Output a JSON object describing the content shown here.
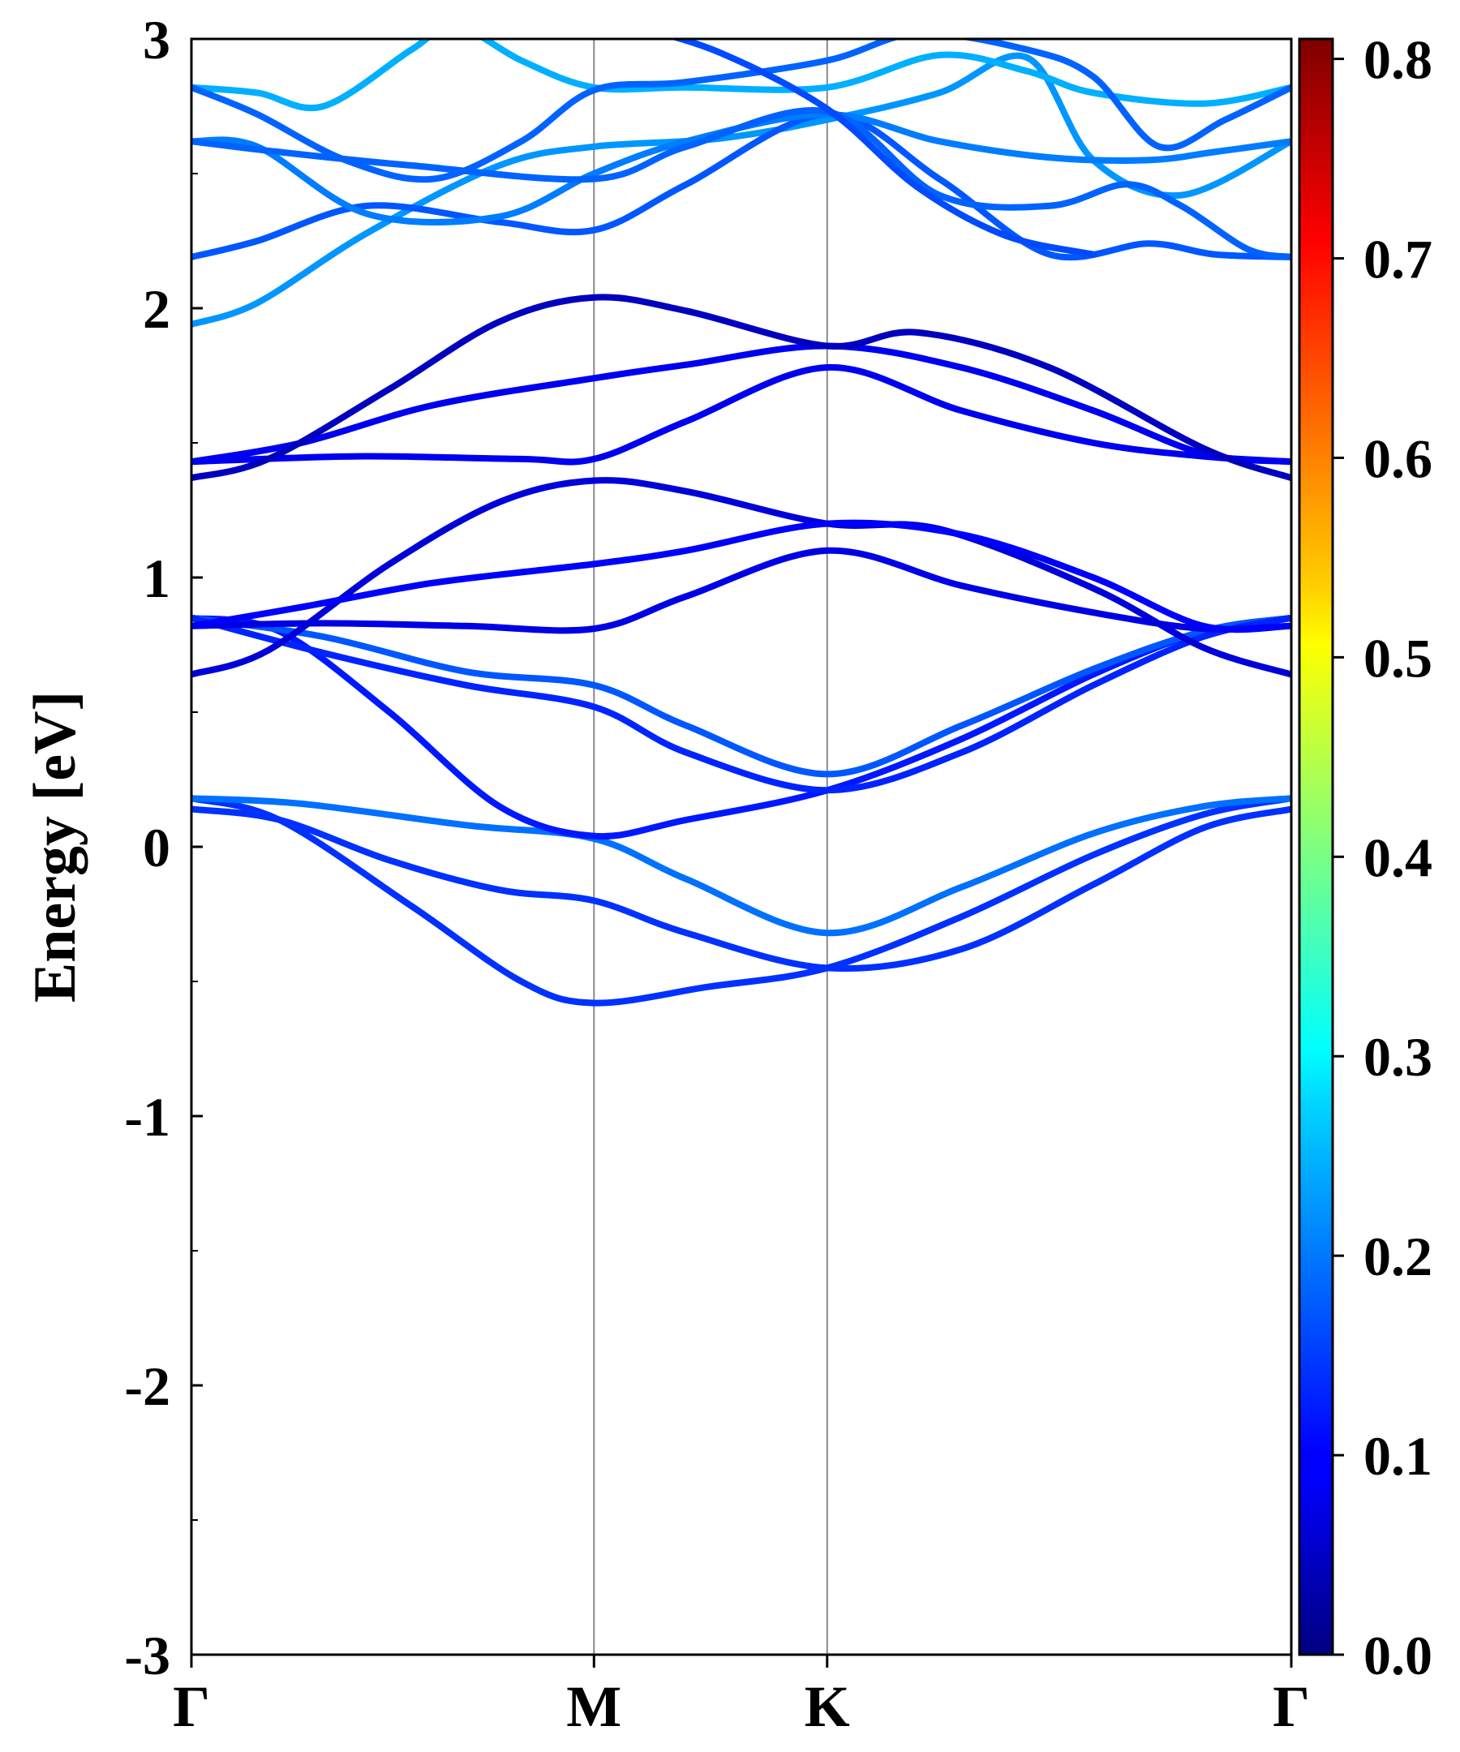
{
  "chart_data": {
    "type": "line",
    "ylabel": "Energy [eV]",
    "ylim": [
      -3,
      3
    ],
    "yticks": [
      "-3",
      "-2",
      "-1",
      "0",
      "1",
      "2",
      "3"
    ],
    "kpoint_labels": [
      "Γ",
      "M",
      "K",
      "Γ"
    ],
    "kpoint_positions": [
      0.0,
      0.366,
      0.578,
      1.0
    ],
    "grid": false,
    "colorbar": {
      "range": [
        0.0,
        0.81
      ],
      "ticks": [
        "0.0",
        "0.1",
        "0.2",
        "0.3",
        "0.4",
        "0.5",
        "0.6",
        "0.7",
        "0.8"
      ],
      "colormap": "jet"
    },
    "series": [
      {
        "color_value": 0.14,
        "points": [
          [
            0,
            0.14
          ],
          [
            0.08,
            0.1
          ],
          [
            0.18,
            -0.05
          ],
          [
            0.28,
            -0.16
          ],
          [
            0.366,
            -0.2
          ],
          [
            0.45,
            -0.32
          ],
          [
            0.578,
            -0.45
          ],
          [
            0.7,
            -0.38
          ],
          [
            0.82,
            -0.14
          ],
          [
            0.92,
            0.07
          ],
          [
            1.0,
            0.14
          ]
        ]
      },
      {
        "color_value": 0.14,
        "points": [
          [
            0,
            0.18
          ],
          [
            0.08,
            0.1
          ],
          [
            0.2,
            -0.22
          ],
          [
            0.3,
            -0.5
          ],
          [
            0.366,
            -0.58
          ],
          [
            0.47,
            -0.52
          ],
          [
            0.578,
            -0.45
          ],
          [
            0.7,
            -0.26
          ],
          [
            0.82,
            -0.03
          ],
          [
            0.92,
            0.12
          ],
          [
            1.0,
            0.18
          ]
        ]
      },
      {
        "color_value": 0.19,
        "points": [
          [
            0,
            0.18
          ],
          [
            0.1,
            0.16
          ],
          [
            0.25,
            0.08
          ],
          [
            0.366,
            0.03
          ],
          [
            0.45,
            -0.12
          ],
          [
            0.578,
            -0.32
          ],
          [
            0.7,
            -0.15
          ],
          [
            0.82,
            0.05
          ],
          [
            0.92,
            0.15
          ],
          [
            1.0,
            0.18
          ]
        ]
      },
      {
        "color_value": 0.12,
        "points": [
          [
            0,
            0.85
          ],
          [
            0.08,
            0.8
          ],
          [
            0.18,
            0.5
          ],
          [
            0.28,
            0.15
          ],
          [
            0.366,
            0.04
          ],
          [
            0.45,
            0.1
          ],
          [
            0.578,
            0.21
          ],
          [
            0.7,
            0.4
          ],
          [
            0.82,
            0.64
          ],
          [
            0.92,
            0.8
          ],
          [
            1.0,
            0.85
          ]
        ]
      },
      {
        "color_value": 0.17,
        "points": [
          [
            0,
            0.85
          ],
          [
            0.12,
            0.78
          ],
          [
            0.25,
            0.65
          ],
          [
            0.366,
            0.6
          ],
          [
            0.45,
            0.45
          ],
          [
            0.578,
            0.27
          ],
          [
            0.7,
            0.45
          ],
          [
            0.82,
            0.66
          ],
          [
            0.92,
            0.8
          ],
          [
            1.0,
            0.85
          ]
        ]
      },
      {
        "color_value": 0.13,
        "points": [
          [
            0,
            0.85
          ],
          [
            0.12,
            0.72
          ],
          [
            0.25,
            0.6
          ],
          [
            0.366,
            0.52
          ],
          [
            0.45,
            0.35
          ],
          [
            0.578,
            0.21
          ],
          [
            0.7,
            0.35
          ],
          [
            0.82,
            0.6
          ],
          [
            0.92,
            0.78
          ],
          [
            1.0,
            0.85
          ]
        ]
      },
      {
        "color_value": 0.08,
        "points": [
          [
            0,
            0.82
          ],
          [
            0.12,
            0.83
          ],
          [
            0.25,
            0.82
          ],
          [
            0.366,
            0.81
          ],
          [
            0.45,
            0.93
          ],
          [
            0.578,
            1.1
          ],
          [
            0.7,
            0.97
          ],
          [
            0.82,
            0.87
          ],
          [
            0.92,
            0.81
          ],
          [
            1.0,
            0.82
          ]
        ]
      },
      {
        "color_value": 0.07,
        "points": [
          [
            0,
            0.64
          ],
          [
            0.07,
            0.73
          ],
          [
            0.18,
            1.05
          ],
          [
            0.28,
            1.28
          ],
          [
            0.366,
            1.36
          ],
          [
            0.45,
            1.32
          ],
          [
            0.578,
            1.2
          ],
          [
            0.68,
            1.18
          ],
          [
            0.82,
            0.96
          ],
          [
            0.92,
            0.74
          ],
          [
            1.0,
            0.64
          ]
        ]
      },
      {
        "color_value": 0.1,
        "points": [
          [
            0,
            0.82
          ],
          [
            0.1,
            0.89
          ],
          [
            0.22,
            0.98
          ],
          [
            0.366,
            1.05
          ],
          [
            0.45,
            1.1
          ],
          [
            0.578,
            1.2
          ],
          [
            0.7,
            1.16
          ],
          [
            0.82,
            1.0
          ],
          [
            0.92,
            0.82
          ],
          [
            1.0,
            0.82
          ]
        ]
      },
      {
        "color_value": 0.09,
        "points": [
          [
            0,
            1.43
          ],
          [
            0.15,
            1.45
          ],
          [
            0.3,
            1.44
          ],
          [
            0.366,
            1.44
          ],
          [
            0.45,
            1.58
          ],
          [
            0.578,
            1.78
          ],
          [
            0.7,
            1.62
          ],
          [
            0.82,
            1.5
          ],
          [
            0.92,
            1.45
          ],
          [
            1.0,
            1.43
          ]
        ]
      },
      {
        "color_value": 0.09,
        "points": [
          [
            0,
            1.43
          ],
          [
            0.1,
            1.5
          ],
          [
            0.22,
            1.64
          ],
          [
            0.366,
            1.74
          ],
          [
            0.45,
            1.79
          ],
          [
            0.578,
            1.86
          ],
          [
            0.7,
            1.78
          ],
          [
            0.82,
            1.62
          ],
          [
            0.92,
            1.46
          ],
          [
            1.0,
            1.43
          ]
        ]
      },
      {
        "color_value": 0.05,
        "points": [
          [
            0,
            1.37
          ],
          [
            0.07,
            1.44
          ],
          [
            0.18,
            1.7
          ],
          [
            0.28,
            1.95
          ],
          [
            0.366,
            2.04
          ],
          [
            0.45,
            1.99
          ],
          [
            0.578,
            1.86
          ],
          [
            0.66,
            1.91
          ],
          [
            0.78,
            1.78
          ],
          [
            0.92,
            1.48
          ],
          [
            1.0,
            1.37
          ]
        ]
      },
      {
        "color_value": 0.22,
        "points": [
          [
            0,
            1.94
          ],
          [
            0.06,
            2.02
          ],
          [
            0.16,
            2.28
          ],
          [
            0.28,
            2.53
          ],
          [
            0.366,
            2.6
          ],
          [
            0.48,
            2.63
          ],
          [
            0.578,
            2.7
          ],
          [
            0.68,
            2.8
          ],
          [
            0.76,
            2.93
          ],
          [
            0.82,
            2.55
          ],
          [
            0.9,
            2.42
          ],
          [
            1.0,
            2.62
          ]
        ]
      },
      {
        "color_value": 0.17,
        "points": [
          [
            0,
            2.19
          ],
          [
            0.06,
            2.25
          ],
          [
            0.16,
            2.38
          ],
          [
            0.28,
            2.32
          ],
          [
            0.366,
            2.29
          ],
          [
            0.45,
            2.46
          ],
          [
            0.578,
            2.72
          ],
          [
            0.68,
            2.48
          ],
          [
            0.78,
            2.2
          ],
          [
            0.87,
            2.24
          ],
          [
            0.93,
            2.2
          ],
          [
            1.0,
            2.19
          ]
        ]
      },
      {
        "color_value": 0.2,
        "points": [
          [
            0,
            2.62
          ],
          [
            0.06,
            2.6
          ],
          [
            0.16,
            2.35
          ],
          [
            0.28,
            2.34
          ],
          [
            0.366,
            2.5
          ],
          [
            0.45,
            2.62
          ],
          [
            0.578,
            2.72
          ],
          [
            0.68,
            2.62
          ],
          [
            0.78,
            2.56
          ],
          [
            0.87,
            2.55
          ],
          [
            0.93,
            2.58
          ],
          [
            1.0,
            2.62
          ]
        ]
      },
      {
        "color_value": 0.18,
        "points": [
          [
            0,
            2.62
          ],
          [
            0.08,
            2.58
          ],
          [
            0.2,
            2.53
          ],
          [
            0.366,
            2.48
          ],
          [
            0.45,
            2.6
          ],
          [
            0.578,
            2.73
          ],
          [
            0.68,
            2.42
          ],
          [
            0.78,
            2.38
          ],
          [
            0.85,
            2.46
          ],
          [
            0.9,
            2.38
          ],
          [
            0.96,
            2.22
          ],
          [
            1.0,
            2.19
          ]
        ]
      },
      {
        "color_value": 0.24,
        "points": [
          [
            0,
            2.82
          ],
          [
            0.06,
            2.8
          ],
          [
            0.12,
            2.75
          ],
          [
            0.2,
            2.96
          ],
          [
            0.24,
            3.05
          ],
          [
            0.3,
            2.92
          ],
          [
            0.366,
            2.82
          ],
          [
            0.45,
            2.82
          ],
          [
            0.578,
            2.82
          ],
          [
            0.68,
            2.94
          ],
          [
            0.76,
            2.88
          ],
          [
            0.82,
            2.8
          ],
          [
            0.92,
            2.76
          ],
          [
            1.0,
            2.82
          ]
        ]
      },
      {
        "color_value": 0.18,
        "points": [
          [
            0,
            2.82
          ],
          [
            0.06,
            2.72
          ],
          [
            0.14,
            2.55
          ],
          [
            0.22,
            2.48
          ],
          [
            0.3,
            2.62
          ],
          [
            0.366,
            2.81
          ],
          [
            0.45,
            2.84
          ],
          [
            0.578,
            2.92
          ],
          [
            0.66,
            3.02
          ],
          [
            0.76,
            2.96
          ],
          [
            0.82,
            2.86
          ],
          [
            0.88,
            2.6
          ],
          [
            0.94,
            2.7
          ],
          [
            1.0,
            2.82
          ]
        ]
      },
      {
        "color_value": 0.16,
        "points": [
          [
            0.4,
            3.05
          ],
          [
            0.48,
            2.95
          ],
          [
            0.578,
            2.74
          ],
          [
            0.66,
            2.45
          ],
          [
            0.74,
            2.27
          ],
          [
            0.82,
            2.2
          ]
        ]
      }
    ]
  }
}
